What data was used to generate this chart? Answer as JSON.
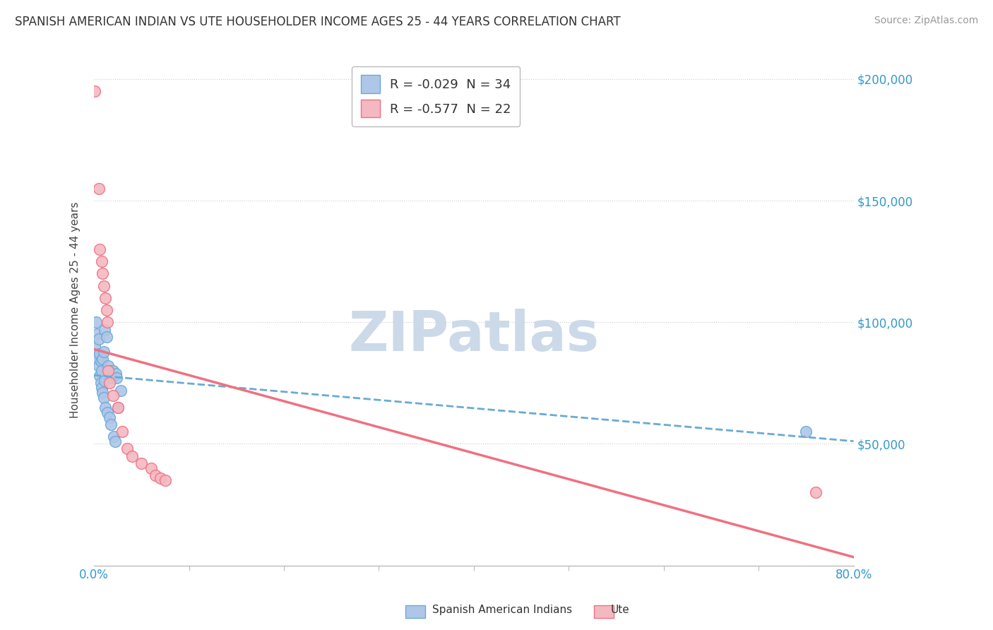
{
  "title": "SPANISH AMERICAN INDIAN VS UTE HOUSEHOLDER INCOME AGES 25 - 44 YEARS CORRELATION CHART",
  "source": "Source: ZipAtlas.com",
  "ylabel": "Householder Income Ages 25 - 44 years",
  "watermark": "ZIPatlas",
  "legend1_label": "R = -0.029  N = 34",
  "legend2_label": "R = -0.577  N = 22",
  "legend1_face": "#aec6e8",
  "legend2_face": "#f4b8c1",
  "scatter1_edge": "#6aaad4",
  "scatter2_edge": "#f07080",
  "trend1_color": "#6aaad4",
  "trend2_color": "#f07080",
  "xmin": 0.0,
  "xmax": 0.8,
  "ymin": 0,
  "ymax": 210000,
  "yticks": [
    0,
    50000,
    100000,
    150000,
    200000
  ],
  "ytick_labels": [
    "",
    "$50,000",
    "$100,000",
    "$150,000",
    "$200,000"
  ],
  "bg_color": "#ffffff",
  "watermark_color": "#ccd9e8",
  "title_fontsize": 12,
  "source_fontsize": 10,
  "tick_color": "#3399cc",
  "blue_x": [
    0.001,
    0.002,
    0.003,
    0.004,
    0.005,
    0.005,
    0.006,
    0.006,
    0.007,
    0.007,
    0.008,
    0.008,
    0.009,
    0.009,
    0.01,
    0.01,
    0.011,
    0.011,
    0.012,
    0.013,
    0.014,
    0.015,
    0.016,
    0.017,
    0.018,
    0.019,
    0.02,
    0.021,
    0.022,
    0.023,
    0.024,
    0.025,
    0.028,
    0.75
  ],
  "blue_y": [
    90000,
    100000,
    95000,
    85000,
    82000,
    93000,
    78000,
    87000,
    75000,
    84000,
    73000,
    80000,
    71000,
    85000,
    69000,
    88000,
    97000,
    76000,
    65000,
    94000,
    63000,
    82000,
    61000,
    80000,
    58000,
    77000,
    80000,
    53000,
    51000,
    79000,
    77000,
    65000,
    72000,
    55000
  ],
  "pink_x": [
    0.001,
    0.005,
    0.006,
    0.008,
    0.009,
    0.01,
    0.012,
    0.013,
    0.014,
    0.015,
    0.016,
    0.02,
    0.025,
    0.03,
    0.035,
    0.04,
    0.05,
    0.06,
    0.065,
    0.07,
    0.075,
    0.76
  ],
  "pink_y": [
    195000,
    155000,
    130000,
    125000,
    120000,
    115000,
    110000,
    105000,
    100000,
    80000,
    75000,
    70000,
    65000,
    55000,
    48000,
    45000,
    42000,
    40000,
    37000,
    36000,
    35000,
    30000
  ]
}
